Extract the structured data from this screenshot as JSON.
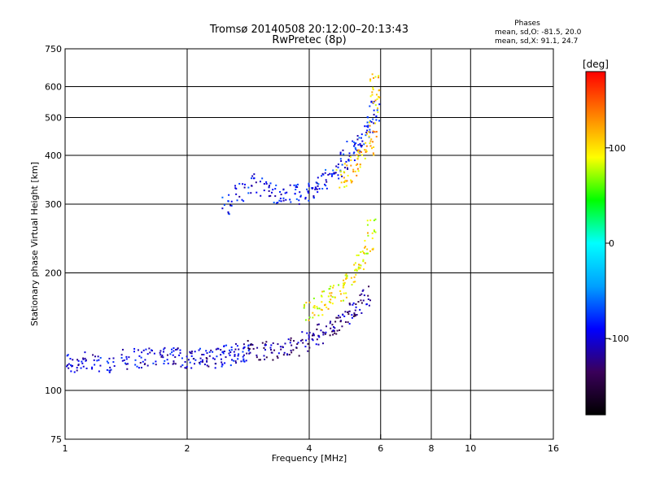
{
  "chart_data": {
    "type": "scatter",
    "title": "Tromsø 20140508 20:12:00–20:13:43",
    "subtitle": "RwPretec (8p)",
    "xlabel": "Frequency [MHz]",
    "ylabel": "Stationary phase Virtual Height [km]",
    "xscale": "log",
    "yscale": "log",
    "xlim": [
      1,
      16
    ],
    "ylim": [
      75,
      750
    ],
    "x_ticks": [
      1,
      2,
      4,
      6,
      8,
      10,
      16
    ],
    "y_ticks": [
      75,
      100,
      200,
      300,
      400,
      500,
      600,
      750
    ],
    "x_grid": [
      1,
      2,
      4,
      6,
      8,
      10,
      16
    ],
    "y_grid": [
      100,
      200,
      300,
      400,
      500,
      600
    ],
    "grid": true,
    "phases": {
      "title": "Phases",
      "o_line": "mean, sd,O: -81.5, 20.0",
      "x_line": "mean, sd,X:  91.1, 24.7"
    },
    "colorbar": {
      "label": "[deg]",
      "range": [
        -180,
        180
      ],
      "ticks": [
        100,
        0,
        -100
      ],
      "colormap": "rainbow",
      "colors": [
        "#000000",
        "#3a005a",
        "#0000ff",
        "#00a0ff",
        "#00ffff",
        "#00ff00",
        "#ffff00",
        "#ff8000",
        "#ff0000"
      ]
    },
    "clusters": [
      {
        "name_hint": "low trace",
        "points": [
          [
            1.0,
            118
          ],
          [
            1.05,
            117
          ],
          [
            1.1,
            118
          ],
          [
            1.2,
            117
          ],
          [
            1.3,
            118
          ],
          [
            1.4,
            120
          ],
          [
            1.5,
            121
          ],
          [
            1.6,
            122
          ],
          [
            1.7,
            123
          ],
          [
            1.8,
            124
          ],
          [
            1.9,
            122
          ],
          [
            2.0,
            120
          ],
          [
            2.1,
            121
          ],
          [
            2.2,
            120
          ],
          [
            2.3,
            121
          ],
          [
            2.4,
            122
          ],
          [
            2.5,
            123
          ],
          [
            2.6,
            124
          ],
          [
            2.7,
            125
          ],
          [
            2.8,
            126
          ]
        ],
        "phase": -100
      },
      {
        "name_hint": "o trace",
        "points": [
          [
            2.9,
            128
          ],
          [
            3.1,
            127
          ],
          [
            3.3,
            126
          ],
          [
            3.5,
            128
          ],
          [
            3.7,
            130
          ],
          [
            3.9,
            133
          ],
          [
            4.1,
            136
          ],
          [
            4.3,
            140
          ],
          [
            4.5,
            143
          ],
          [
            4.7,
            147
          ],
          [
            4.9,
            152
          ],
          [
            5.1,
            158
          ],
          [
            5.3,
            165
          ],
          [
            5.5,
            175
          ]
        ],
        "phase": -120
      },
      {
        "name_hint": "x trace",
        "points": [
          [
            4.0,
            160
          ],
          [
            4.2,
            165
          ],
          [
            4.4,
            170
          ],
          [
            4.6,
            175
          ],
          [
            4.8,
            180
          ],
          [
            5.0,
            188
          ],
          [
            5.2,
            200
          ],
          [
            5.4,
            215
          ],
          [
            5.6,
            235
          ],
          [
            5.7,
            260
          ]
        ],
        "phase": 95
      },
      {
        "name_hint": "f-layer",
        "points": [
          [
            2.5,
            300
          ],
          [
            2.7,
            320
          ],
          [
            2.9,
            340
          ],
          [
            3.1,
            330
          ],
          [
            3.3,
            320
          ],
          [
            3.5,
            318
          ],
          [
            3.7,
            318
          ],
          [
            3.9,
            322
          ],
          [
            4.1,
            330
          ],
          [
            4.3,
            340
          ],
          [
            4.5,
            352
          ],
          [
            4.7,
            370
          ],
          [
            4.9,
            390
          ],
          [
            5.1,
            410
          ],
          [
            5.3,
            430
          ],
          [
            5.5,
            450
          ],
          [
            5.7,
            480
          ],
          [
            5.8,
            520
          ]
        ],
        "phase": -90
      },
      {
        "name_hint": "x upper",
        "points": [
          [
            4.8,
            350
          ],
          [
            5.0,
            360
          ],
          [
            5.2,
            375
          ],
          [
            5.4,
            390
          ],
          [
            5.6,
            420
          ],
          [
            5.7,
            460
          ],
          [
            5.8,
            540
          ],
          [
            5.8,
            610
          ]
        ],
        "phase": 110
      }
    ]
  }
}
